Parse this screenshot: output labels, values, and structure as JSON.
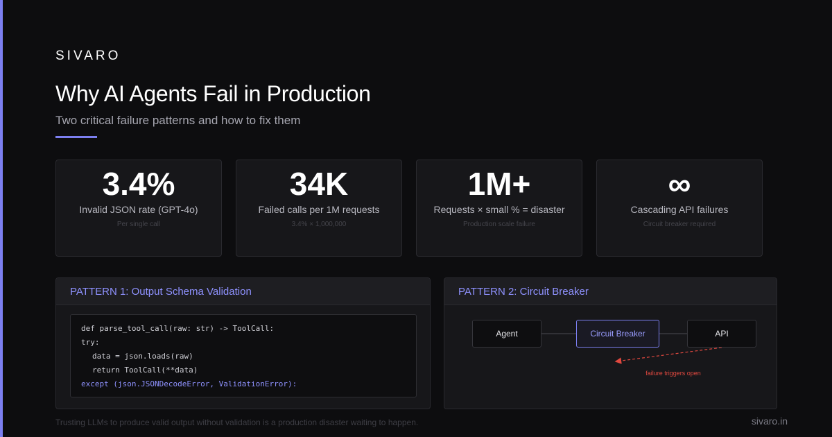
{
  "brand": "SIVARO",
  "header": {
    "title": "Why AI Agents Fail in Production",
    "subtitle": "Two critical failure patterns and how to fix them"
  },
  "stats": [
    {
      "value": "3.4%",
      "label": "Invalid JSON rate (GPT-4o)",
      "note": "Per single call"
    },
    {
      "value": "34K",
      "label": "Failed calls per 1M requests",
      "note": "3.4% × 1,000,000"
    },
    {
      "value": "1M+",
      "label": "Requests × small % = disaster",
      "note": "Production scale failure"
    },
    {
      "value": "∞",
      "label": "Cascading API failures",
      "note": "Circuit breaker required"
    }
  ],
  "pattern1": {
    "title": "PATTERN 1: Output Schema Validation",
    "code": [
      "def parse_tool_call(raw: str) -> ToolCall:",
      "try:",
      "data = json.loads(raw)",
      "return ToolCall(**data)",
      "except (json.JSONDecodeError, ValidationError):"
    ]
  },
  "pattern2": {
    "title": "PATTERN 2: Circuit Breaker",
    "nodes": {
      "agent": "Agent",
      "breaker": "Circuit Breaker",
      "api": "API"
    },
    "failure_label": "failure triggers open"
  },
  "footer": {
    "note": "Trusting LLMs to produce valid output without validation is a production disaster waiting to happen.",
    "url": "sivaro.in"
  },
  "colors": {
    "accent": "#7c7ff0",
    "background": "#0d0d0f",
    "card": "#17171a",
    "failure": "#e0483f"
  }
}
